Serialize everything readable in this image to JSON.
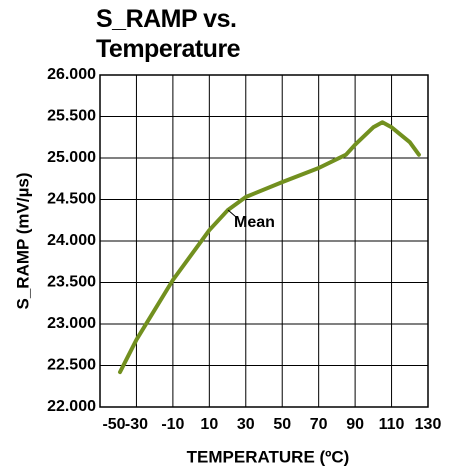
{
  "chart_data": {
    "type": "line",
    "title": "S_RAMP vs. Temperature",
    "x_label": "TEMPERATURE (ºC)",
    "y_label": "S_RAMP (mV/µs)",
    "series": [
      {
        "name": "Mean",
        "color": "#72901f",
        "x": [
          -39,
          -30,
          -10,
          10,
          20,
          30,
          50,
          70,
          85,
          90,
          100,
          105,
          110,
          120,
          125
        ],
        "values": [
          22.42,
          22.81,
          23.53,
          24.13,
          24.37,
          24.53,
          24.71,
          24.88,
          25.04,
          25.16,
          25.37,
          25.43,
          25.37,
          25.19,
          25.04
        ]
      }
    ],
    "xlim": [
      -50,
      130
    ],
    "xticks": [
      -50,
      -30,
      -10,
      10,
      30,
      50,
      70,
      90,
      110,
      130
    ],
    "ylim": [
      22,
      26
    ],
    "yticks": [
      {
        "value": 22,
        "label": "22.000"
      },
      {
        "value": 22.5,
        "label": "22.500"
      },
      {
        "value": 23,
        "label": "23.000"
      },
      {
        "value": 23.5,
        "label": "23.500"
      },
      {
        "value": 24,
        "label": "24.000"
      },
      {
        "value": 24.5,
        "label": "24.500"
      },
      {
        "value": 25,
        "label": "25.000"
      },
      {
        "value": 25.5,
        "label": "25.500"
      },
      {
        "value": 26,
        "label": "26.000"
      }
    ],
    "grid": true
  }
}
